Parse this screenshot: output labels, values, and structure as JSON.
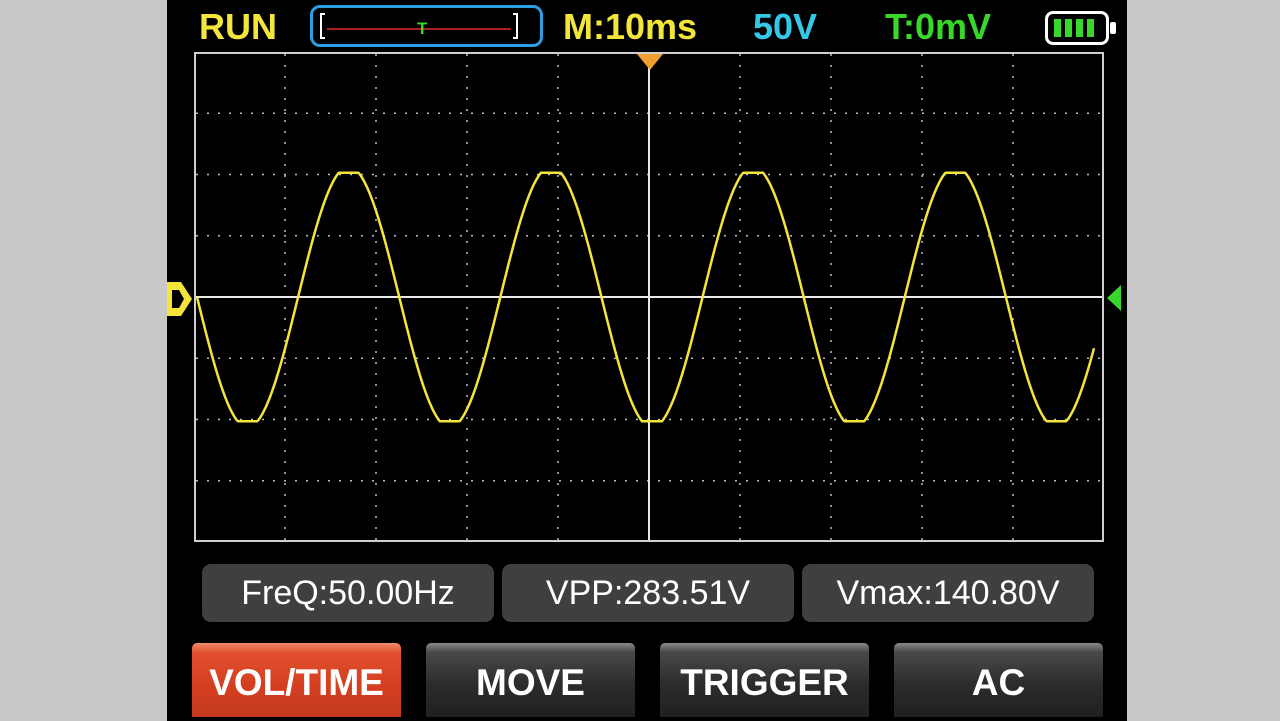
{
  "header": {
    "run_status": "RUN",
    "trigger_marker": "T",
    "timebase": "M:10ms",
    "volts_per_div": "50V",
    "trigger_level": "T:0mV",
    "battery_icon": "battery-full-icon"
  },
  "waveform": {
    "color": "#f4e53a",
    "grid_divisions_x": 10,
    "grid_divisions_y": 8,
    "frequency_hz": 50.0,
    "vmax_v": 140.8,
    "vpp_v": 283.51,
    "timebase_ms_per_div": 10,
    "volts_per_div": 50
  },
  "measurements": {
    "freq": "FreQ:50.00Hz",
    "vpp": "VPP:283.51V",
    "vmax": "Vmax:140.80V"
  },
  "buttons": [
    {
      "label": "VOL/TIME",
      "active": true
    },
    {
      "label": "MOVE",
      "active": false
    },
    {
      "label": "TRIGGER",
      "active": false
    },
    {
      "label": "AC",
      "active": false
    }
  ],
  "colors": {
    "accent_yellow": "#f4e53a",
    "accent_cyan": "#35c8e6",
    "accent_green": "#39d62c",
    "trigger_orange": "#f0a030",
    "active_button": "#d43e20"
  }
}
